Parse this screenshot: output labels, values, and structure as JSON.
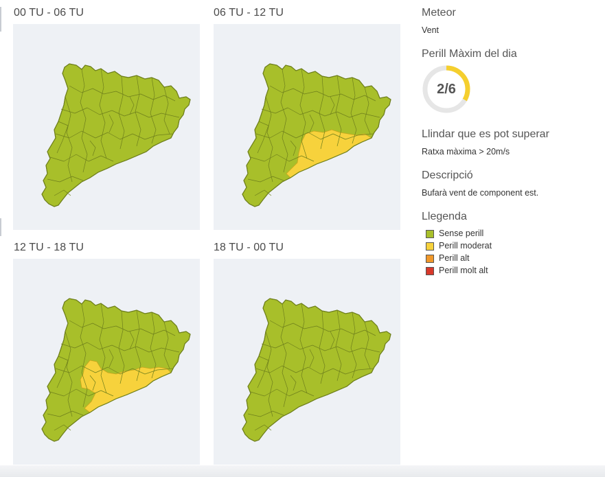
{
  "panels": [
    {
      "label": "00 TU - 06 TU",
      "warning": "none"
    },
    {
      "label": "06 TU - 12 TU",
      "warning": "coast"
    },
    {
      "label": "12 TU - 18 TU",
      "warning": "inland"
    },
    {
      "label": "18 TU - 00 TU",
      "warning": "none"
    }
  ],
  "meteor": {
    "title": "Meteor",
    "value": "Vent"
  },
  "max_danger": {
    "title": "Perill Màxim del dia",
    "value": "2/6",
    "fraction": 0.3333
  },
  "threshold": {
    "title": "Llindar que es pot superar",
    "value": "Ratxa màxima > 20m/s"
  },
  "description": {
    "title": "Descripció",
    "value": "Bufarà vent de component est."
  },
  "legend": {
    "title": "Llegenda",
    "items": [
      {
        "label": "Sense perill",
        "color": "#a8bf2a"
      },
      {
        "label": "Perill moderat",
        "color": "#f7d23c"
      },
      {
        "label": "Perill alt",
        "color": "#f0982a"
      },
      {
        "label": "Perill molt alt",
        "color": "#d8382a"
      }
    ]
  },
  "colors": {
    "green": "#a8bf2a",
    "yellow": "#f7d23c",
    "border": "#6e7f1c",
    "gauge": "#f5cf2e",
    "gauge_track": "#e6e6e6"
  }
}
